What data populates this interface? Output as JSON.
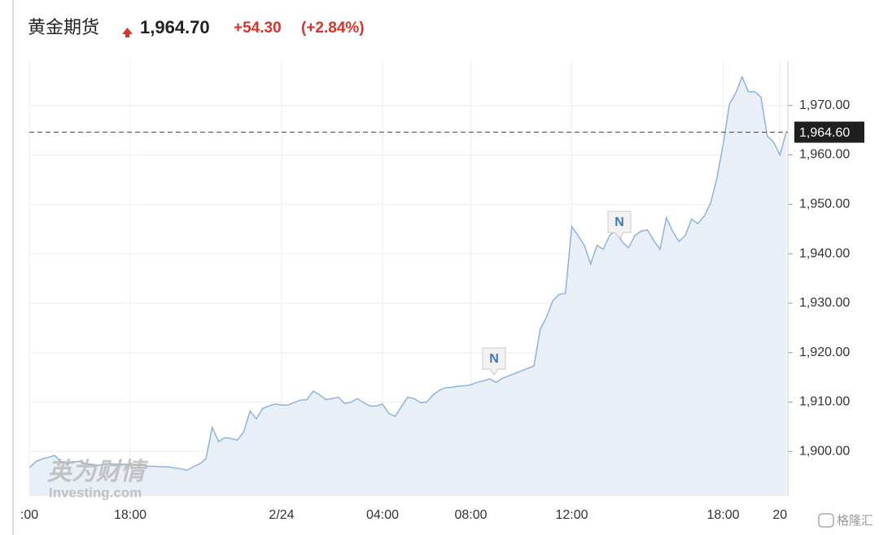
{
  "header": {
    "name": "黄金期货",
    "price": "1,964.70",
    "change": "+54.30",
    "change_pct": "(+2.84%)"
  },
  "watermark": {
    "cn": "英为财情",
    "en": "Investing.com",
    "corner": "格隆汇"
  },
  "chart_data": {
    "type": "area",
    "categories": [
      ":00",
      null,
      null,
      null,
      null,
      null,
      null,
      null,
      null,
      null,
      null,
      null,
      null,
      null,
      null,
      null,
      "18:00",
      null,
      null,
      null,
      null,
      null,
      null,
      null,
      null,
      null,
      null,
      null,
      null,
      null,
      null,
      null,
      null,
      null,
      null,
      null,
      null,
      null,
      null,
      null,
      "2/24",
      null,
      null,
      null,
      null,
      null,
      null,
      null,
      null,
      null,
      null,
      null,
      null,
      null,
      null,
      null,
      "04:00",
      null,
      null,
      null,
      null,
      null,
      null,
      null,
      null,
      null,
      null,
      null,
      null,
      null,
      "08:00",
      null,
      null,
      null,
      null,
      null,
      null,
      null,
      null,
      null,
      null,
      null,
      null,
      null,
      null,
      null,
      "12:00",
      null,
      null,
      null,
      null,
      null,
      null,
      null,
      null,
      null,
      null,
      null,
      null,
      null,
      null,
      null,
      null,
      null,
      null,
      null,
      null,
      null,
      null,
      null,
      "18:00",
      null,
      null,
      null,
      null,
      null,
      null,
      null,
      null,
      "20",
      null
    ],
    "values": [
      1896.7,
      1897.9,
      1898.5,
      1898.8,
      1899.2,
      1897.9,
      1897.5,
      1897.9,
      1898.0,
      1897.5,
      1897.4,
      1897.2,
      1897.5,
      1897.5,
      1897.4,
      1897.4,
      1897.4,
      1897.2,
      1897.2,
      1897.0,
      1897.0,
      1896.9,
      1896.9,
      1896.7,
      1896.5,
      1896.2,
      1896.9,
      1897.5,
      1898.5,
      1904.9,
      1902.0,
      1902.8,
      1902.6,
      1902.3,
      1904.0,
      1908.2,
      1906.6,
      1908.7,
      1909.2,
      1909.6,
      1909.4,
      1909.4,
      1909.9,
      1910.4,
      1910.5,
      1912.2,
      1911.5,
      1910.5,
      1910.7,
      1911.0,
      1909.7,
      1910.0,
      1910.7,
      1909.9,
      1909.2,
      1909.2,
      1909.6,
      1907.7,
      1907.1,
      1909.1,
      1911.0,
      1910.7,
      1909.9,
      1910.0,
      1911.4,
      1912.4,
      1912.9,
      1913.0,
      1913.2,
      1913.3,
      1913.5,
      1914.0,
      1914.3,
      1914.7,
      1914.0,
      1914.8,
      1915.3,
      1915.8,
      1916.3,
      1916.8,
      1917.3,
      1924.7,
      1927.2,
      1930.5,
      1931.8,
      1932.0,
      1945.5,
      1943.7,
      1941.7,
      1937.9,
      1941.7,
      1940.9,
      1943.7,
      1944.8,
      1942.4,
      1941.2,
      1943.7,
      1944.6,
      1944.8,
      1942.7,
      1940.9,
      1947.3,
      1944.5,
      1942.5,
      1943.7,
      1947.0,
      1946.1,
      1947.6,
      1950.2,
      1955.2,
      1962.1,
      1970.3,
      1972.5,
      1975.8,
      1972.8,
      1972.8,
      1971.7,
      1963.8,
      1962.6,
      1960.0,
      1964.6
    ],
    "color": "#8fb3d9",
    "fill": "#e9eff7",
    "ylim": [
      1891,
      1979
    ],
    "yticks": [
      {
        "value": 1900,
        "label": "1,900.00"
      },
      {
        "value": 1910,
        "label": "1,910.00"
      },
      {
        "value": 1920,
        "label": "1,920.00"
      },
      {
        "value": 1930,
        "label": "1,930.00"
      },
      {
        "value": 1940,
        "label": "1,940.00"
      },
      {
        "value": 1950,
        "label": "1,950.00"
      },
      {
        "value": 1960,
        "label": "1,960.00"
      },
      {
        "value": 1970,
        "label": "1,970.00"
      }
    ],
    "last_price": {
      "value": 1964.6,
      "label": "1,964.60"
    },
    "annotations": [
      "N",
      "N"
    ],
    "grid": true
  }
}
